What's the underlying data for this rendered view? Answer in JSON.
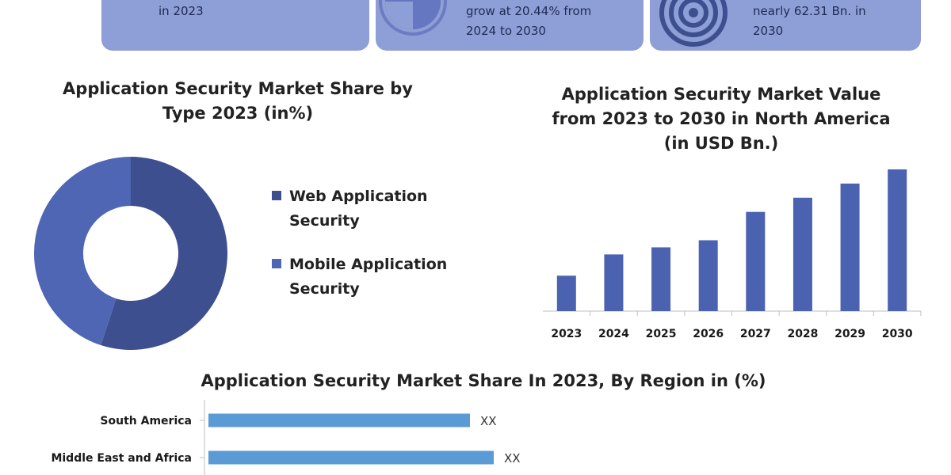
{
  "cards": [
    {
      "text": "in 2023"
    },
    {
      "text": "grow at 20.44% from\n2024 to 2030"
    },
    {
      "text": "nearly 62.31 Bn. in\n2030"
    }
  ],
  "colors": {
    "card_bg": "#8e9ed6",
    "web_app_security": "#3d4f8f",
    "mobile_app_security": "#4e66b3",
    "bar": "#4b62b0",
    "region_bar": "#5b9bd5"
  },
  "icons": [
    "pie-chart-icon",
    "target-icon"
  ],
  "chart_data": [
    {
      "type": "pie",
      "title": "Application Security Market Share by Type 2023 (in%)",
      "labels": [
        "Web Application Security",
        "Mobile Application Security"
      ],
      "values": [
        55,
        45
      ],
      "donut": true,
      "legend": "right"
    },
    {
      "type": "bar",
      "title": "Application Security Market Value from 2023 to 2030 in North America (in USD Bn.)",
      "categories": [
        "2023",
        "2024",
        "2025",
        "2026",
        "2027",
        "2028",
        "2029",
        "2030"
      ],
      "values": [
        2.5,
        4.0,
        4.5,
        5.0,
        7.0,
        8.0,
        9.0,
        10.0
      ],
      "ylim": [
        0,
        10.5
      ],
      "grid": false
    },
    {
      "type": "bar",
      "orientation": "horizontal",
      "title": "Application Security Market Share In 2023, By Region in (%)",
      "categories": [
        "South America",
        "Middle East and Africa"
      ],
      "values": [
        33,
        36
      ],
      "data_labels": [
        "XX",
        "XX"
      ],
      "xlim": [
        0,
        50
      ]
    }
  ]
}
